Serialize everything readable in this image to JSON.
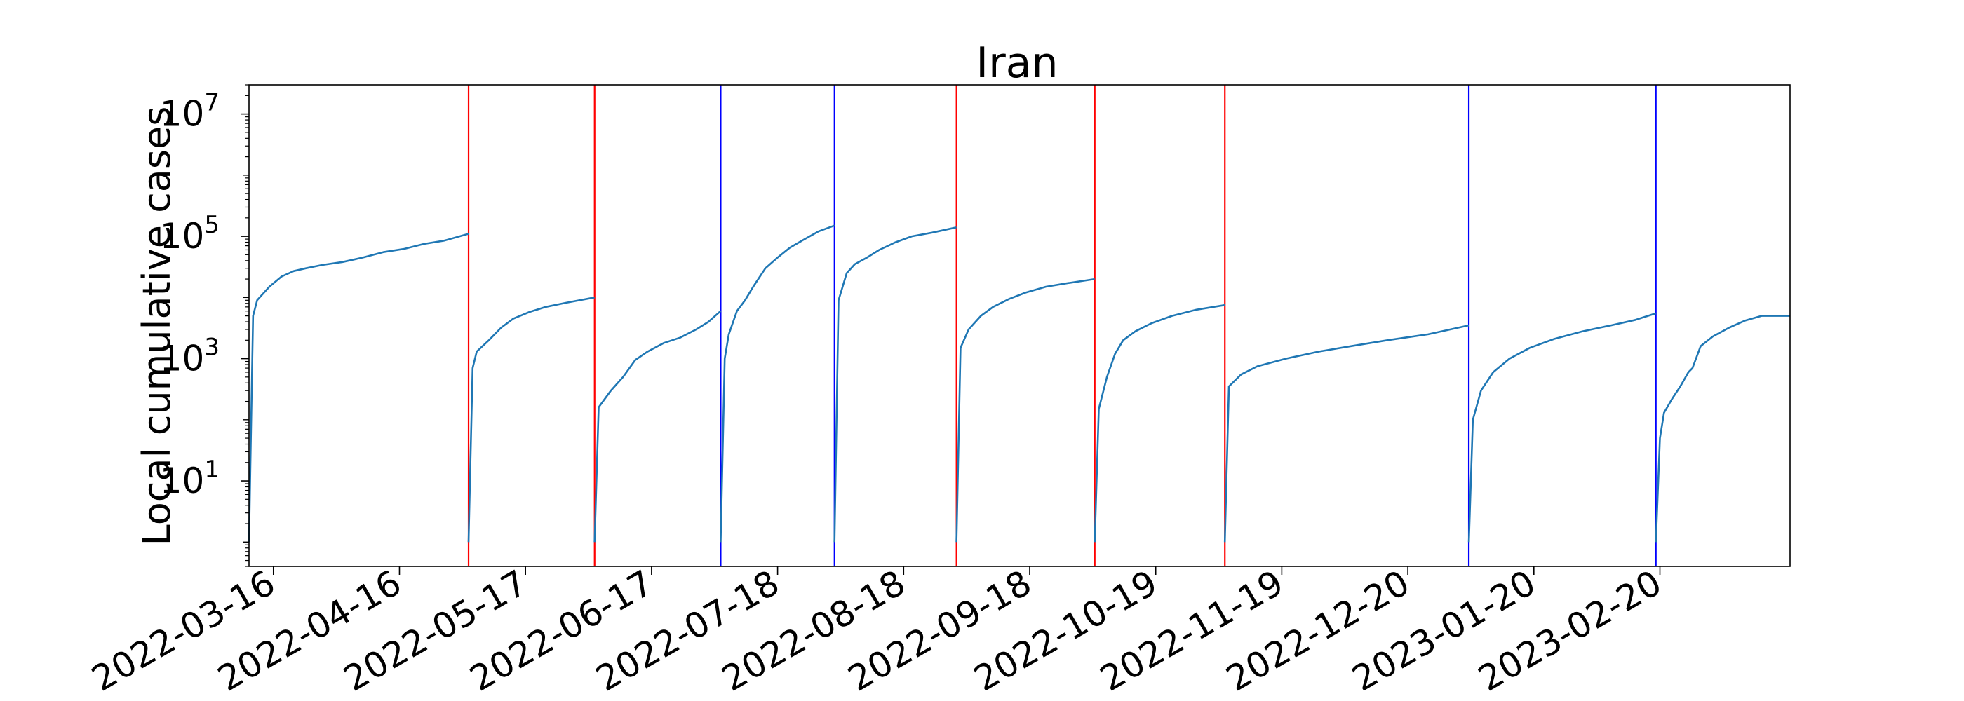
{
  "chart_data": {
    "type": "line",
    "title": "Iran",
    "ylabel": "Local cumulative cases",
    "xlabel": "",
    "yscale": "log",
    "xlim": [
      "2022-03-10",
      "2023-03-24"
    ],
    "ylim": [
      0.4,
      30000000
    ],
    "grid": false,
    "legend": "none",
    "x_ticks": [
      "2022-03-16",
      "2022-04-16",
      "2022-05-17",
      "2022-06-17",
      "2022-07-18",
      "2022-08-18",
      "2022-09-18",
      "2022-10-19",
      "2022-11-19",
      "2022-12-20",
      "2023-01-20",
      "2023-02-20"
    ],
    "y_ticks": [
      {
        "value": 10,
        "base": "10",
        "exp": "1"
      },
      {
        "value": 1000,
        "base": "10",
        "exp": "3"
      },
      {
        "value": 100000,
        "base": "10",
        "exp": "5"
      },
      {
        "value": 10000000,
        "base": "10",
        "exp": "7"
      }
    ],
    "markers": [
      {
        "date": "2022-05-03",
        "color": "#ff0000"
      },
      {
        "date": "2022-06-03",
        "color": "#ff0000"
      },
      {
        "date": "2022-07-04",
        "color": "#0000ff"
      },
      {
        "date": "2022-08-01",
        "color": "#0000ff"
      },
      {
        "date": "2022-08-31",
        "color": "#ff0000"
      },
      {
        "date": "2022-10-04",
        "color": "#ff0000"
      },
      {
        "date": "2022-11-05",
        "color": "#ff0000"
      },
      {
        "date": "2023-01-04",
        "color": "#0000ff"
      },
      {
        "date": "2023-02-19",
        "color": "#0000ff"
      }
    ],
    "series": [
      {
        "color": "#1f77b4",
        "points": [
          [
            "2022-03-10",
            1
          ],
          [
            "2022-03-11",
            5000
          ],
          [
            "2022-03-12",
            9000
          ],
          [
            "2022-03-15",
            15000
          ],
          [
            "2022-03-18",
            22000
          ],
          [
            "2022-03-21",
            27000
          ],
          [
            "2022-03-24",
            30000
          ],
          [
            "2022-03-28",
            34000
          ],
          [
            "2022-04-02",
            38000
          ],
          [
            "2022-04-07",
            45000
          ],
          [
            "2022-04-12",
            55000
          ],
          [
            "2022-04-17",
            62000
          ],
          [
            "2022-04-22",
            75000
          ],
          [
            "2022-04-27",
            85000
          ],
          [
            "2022-05-03",
            110000
          ]
        ]
      },
      {
        "color": "#1f77b4",
        "points": [
          [
            "2022-05-03",
            1
          ],
          [
            "2022-05-04",
            700
          ],
          [
            "2022-05-05",
            1300
          ],
          [
            "2022-05-08",
            2000
          ],
          [
            "2022-05-11",
            3200
          ],
          [
            "2022-05-14",
            4500
          ],
          [
            "2022-05-18",
            5800
          ],
          [
            "2022-05-22",
            7000
          ],
          [
            "2022-05-27",
            8200
          ],
          [
            "2022-06-03",
            10000
          ]
        ]
      },
      {
        "color": "#1f77b4",
        "points": [
          [
            "2022-06-03",
            1
          ],
          [
            "2022-06-04",
            160
          ],
          [
            "2022-06-07",
            300
          ],
          [
            "2022-06-10",
            500
          ],
          [
            "2022-06-13",
            950
          ],
          [
            "2022-06-16",
            1300
          ],
          [
            "2022-06-20",
            1800
          ],
          [
            "2022-06-24",
            2200
          ],
          [
            "2022-06-28",
            3000
          ],
          [
            "2022-07-01",
            4000
          ],
          [
            "2022-07-04",
            6000
          ]
        ]
      },
      {
        "color": "#1f77b4",
        "points": [
          [
            "2022-07-04",
            1
          ],
          [
            "2022-07-05",
            1000
          ],
          [
            "2022-07-06",
            2500
          ],
          [
            "2022-07-08",
            6000
          ],
          [
            "2022-07-10",
            9000
          ],
          [
            "2022-07-12",
            15000
          ],
          [
            "2022-07-15",
            30000
          ],
          [
            "2022-07-18",
            45000
          ],
          [
            "2022-07-21",
            65000
          ],
          [
            "2022-07-24",
            85000
          ],
          [
            "2022-07-28",
            120000
          ],
          [
            "2022-08-01",
            150000
          ]
        ]
      },
      {
        "color": "#1f77b4",
        "points": [
          [
            "2022-08-01",
            1
          ],
          [
            "2022-08-02",
            9000
          ],
          [
            "2022-08-04",
            25000
          ],
          [
            "2022-08-06",
            35000
          ],
          [
            "2022-08-09",
            45000
          ],
          [
            "2022-08-12",
            60000
          ],
          [
            "2022-08-16",
            80000
          ],
          [
            "2022-08-20",
            100000
          ],
          [
            "2022-08-25",
            115000
          ],
          [
            "2022-08-31",
            140000
          ]
        ]
      },
      {
        "color": "#1f77b4",
        "points": [
          [
            "2022-08-31",
            1
          ],
          [
            "2022-09-01",
            1500
          ],
          [
            "2022-09-03",
            3000
          ],
          [
            "2022-09-06",
            5000
          ],
          [
            "2022-09-09",
            7000
          ],
          [
            "2022-09-13",
            9500
          ],
          [
            "2022-09-17",
            12000
          ],
          [
            "2022-09-22",
            15000
          ],
          [
            "2022-09-27",
            17000
          ],
          [
            "2022-10-04",
            20000
          ]
        ]
      },
      {
        "color": "#1f77b4",
        "points": [
          [
            "2022-10-04",
            1
          ],
          [
            "2022-10-05",
            150
          ],
          [
            "2022-10-07",
            500
          ],
          [
            "2022-10-09",
            1200
          ],
          [
            "2022-10-11",
            2000
          ],
          [
            "2022-10-14",
            2800
          ],
          [
            "2022-10-18",
            3800
          ],
          [
            "2022-10-23",
            5000
          ],
          [
            "2022-10-29",
            6300
          ],
          [
            "2022-11-05",
            7500
          ]
        ]
      },
      {
        "color": "#1f77b4",
        "points": [
          [
            "2022-11-05",
            1
          ],
          [
            "2022-11-06",
            350
          ],
          [
            "2022-11-09",
            550
          ],
          [
            "2022-11-13",
            750
          ],
          [
            "2022-11-20",
            1000
          ],
          [
            "2022-11-28",
            1300
          ],
          [
            "2022-12-06",
            1600
          ],
          [
            "2022-12-15",
            2000
          ],
          [
            "2022-12-25",
            2500
          ],
          [
            "2023-01-04",
            3500
          ]
        ]
      },
      {
        "color": "#1f77b4",
        "points": [
          [
            "2023-01-04",
            1
          ],
          [
            "2023-01-05",
            100
          ],
          [
            "2023-01-07",
            300
          ],
          [
            "2023-01-10",
            600
          ],
          [
            "2023-01-14",
            1000
          ],
          [
            "2023-01-19",
            1500
          ],
          [
            "2023-01-25",
            2100
          ],
          [
            "2023-02-01",
            2800
          ],
          [
            "2023-02-08",
            3500
          ],
          [
            "2023-02-14",
            4300
          ],
          [
            "2023-02-19",
            5500
          ]
        ]
      },
      {
        "color": "#1f77b4",
        "points": [
          [
            "2023-02-19",
            1
          ],
          [
            "2023-02-20",
            50
          ],
          [
            "2023-02-21",
            130
          ],
          [
            "2023-02-23",
            220
          ],
          [
            "2023-02-25",
            350
          ],
          [
            "2023-02-27",
            600
          ],
          [
            "2023-02-28",
            700
          ],
          [
            "2023-03-02",
            1600
          ],
          [
            "2023-03-05",
            2300
          ],
          [
            "2023-03-09",
            3200
          ],
          [
            "2023-03-13",
            4200
          ],
          [
            "2023-03-17",
            5000
          ],
          [
            "2023-03-24",
            5000
          ]
        ]
      }
    ]
  }
}
